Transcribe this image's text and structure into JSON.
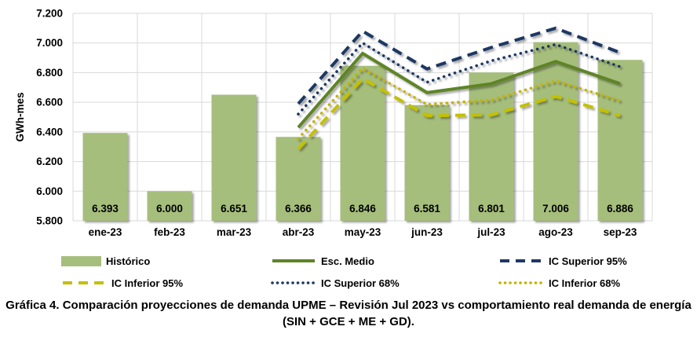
{
  "chart_data": {
    "type": "bar+line",
    "title": "",
    "xlabel": "",
    "ylabel": "GWh-mes",
    "ylim": [
      5800,
      7200
    ],
    "ytick_values": [
      5800,
      6000,
      6200,
      6400,
      6600,
      6800,
      7000,
      7200
    ],
    "ytick_labels": [
      "5.800",
      "6.000",
      "6.200",
      "6.400",
      "6.600",
      "6.800",
      "7.000",
      "7.200"
    ],
    "grid": true,
    "legend_position": "bottom",
    "categories": [
      "ene-23",
      "feb-23",
      "mar-23",
      "abr-23",
      "may-23",
      "jun-23",
      "jul-23",
      "ago-23",
      "sep-23"
    ],
    "bars": {
      "name": "Histórico",
      "color": "#A6BE7C",
      "values": [
        6393,
        6000,
        6651,
        6366,
        6846,
        6581,
        6801,
        7006,
        6886
      ],
      "labels": [
        "6.393",
        "6.000",
        "6.651",
        "6.366",
        "6.846",
        "6.581",
        "6.801",
        "7.006",
        "6.886"
      ]
    },
    "series": [
      {
        "name": "Esc. Medio",
        "color": "#5F8426",
        "style": "solid",
        "values": [
          null,
          null,
          null,
          6430,
          6930,
          6665,
          6725,
          6875,
          6725
        ]
      },
      {
        "name": "IC Superior 95%",
        "color": "#1F3864",
        "style": "dashed",
        "values": [
          null,
          null,
          null,
          6590,
          7080,
          6825,
          6970,
          7100,
          6935
        ]
      },
      {
        "name": "IC Inferior 95%",
        "color": "#C4C000",
        "style": "dashed",
        "values": [
          null,
          null,
          null,
          6285,
          6760,
          6510,
          6515,
          6640,
          6510
        ]
      },
      {
        "name": "IC Superior 68%",
        "color": "#1F3864",
        "style": "dotted",
        "values": [
          null,
          null,
          null,
          6520,
          7000,
          6735,
          6880,
          6990,
          6840
        ]
      },
      {
        "name": "IC Inferior 68%",
        "color": "#C4B300",
        "style": "dotted",
        "values": [
          null,
          null,
          null,
          6355,
          6830,
          6585,
          6615,
          6745,
          6610
        ]
      }
    ]
  },
  "legend": {
    "items": [
      {
        "label": "Histórico",
        "type": "swatch",
        "color": "#A6BE7C"
      },
      {
        "label": "Esc. Medio",
        "type": "solid",
        "color": "#5F8426"
      },
      {
        "label": "IC Superior 95%",
        "type": "dashed",
        "color": "#1F3864"
      },
      {
        "label": "IC Inferior 95%",
        "type": "dashed",
        "color": "#C4C000"
      },
      {
        "label": "IC Superior 68%",
        "type": "dotted",
        "color": "#1F3864"
      },
      {
        "label": "IC Inferior 68%",
        "type": "dotted",
        "color": "#C4B300"
      }
    ]
  },
  "caption": {
    "line1": "Gráfica 4. Comparación proyecciones de demanda UPME – Revisión Jul 2023 vs comportamiento real demanda de energía",
    "line2": "(SIN + GCE + ME + GD)."
  },
  "colors": {
    "gridline": "#D9D9D9",
    "text": "#000000",
    "background": "#FFFFFF"
  }
}
